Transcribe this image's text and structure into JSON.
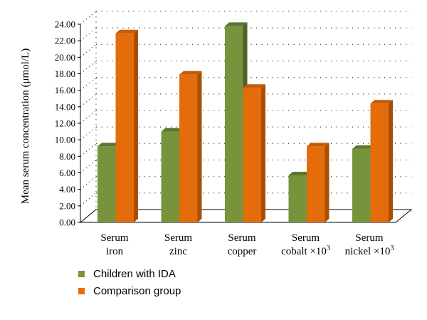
{
  "chart_data": {
    "type": "bar",
    "ylabel": "Mean serum concentration (μmol/L)",
    "ylim": [
      0,
      24
    ],
    "y_ticks": [
      "0.00",
      "2.00",
      "4.00",
      "6.00",
      "8.00",
      "10.00",
      "12.00",
      "14.00",
      "16.00",
      "18.00",
      "20.00",
      "22.00",
      "24.00"
    ],
    "categories": [
      [
        "Serum",
        "iron"
      ],
      [
        "Serum",
        "zinc"
      ],
      [
        "Serum",
        "copper"
      ],
      [
        "Serum",
        "cobalt ×10",
        "3"
      ],
      [
        "Serum",
        "nickel ×10",
        "3"
      ]
    ],
    "series": [
      {
        "name": "Children with IDA",
        "values": [
          9.2,
          11.0,
          23.8,
          5.7,
          8.9
        ]
      },
      {
        "name": "Comparison group",
        "values": [
          22.9,
          17.9,
          16.3,
          9.2,
          14.4
        ]
      }
    ],
    "grid": true,
    "legend_position": "bottom-left",
    "colors": {
      "series0_front": "#77933c",
      "series0_side": "#4f6228",
      "series0_top": "#5e7530",
      "series1_front": "#e46c0a",
      "series1_side": "#a84f07",
      "series1_top": "#c25c08",
      "grid": "#555555",
      "axis": "#000000"
    }
  }
}
